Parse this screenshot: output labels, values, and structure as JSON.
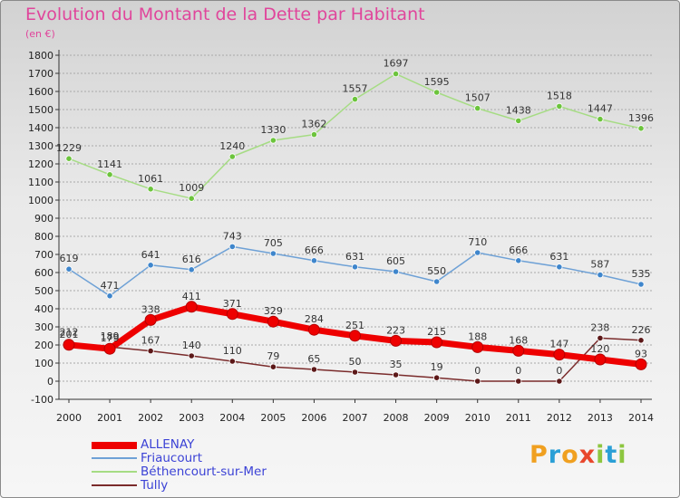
{
  "header": {
    "title": "Evolution du Montant de la Dette par Habitant",
    "subtitle": "(en €)"
  },
  "colors": {
    "title": "#e0459b",
    "legend_text": "#3c43d6"
  },
  "logo": {
    "letters": [
      "P",
      "r",
      "o",
      "x",
      "i",
      "t",
      "i"
    ],
    "colors": [
      "#f0a020",
      "#2a9fd6",
      "#f0a020",
      "#e8472c",
      "#8dc63f",
      "#2a9fd6",
      "#8dc63f"
    ]
  },
  "chart_data": {
    "type": "line",
    "title": "Evolution du Montant de la Dette par Habitant",
    "subtitle": "(en €)",
    "xlabel": "",
    "ylabel": "",
    "ylim": [
      -100,
      1800
    ],
    "y_ticks": [
      -100,
      0,
      100,
      200,
      300,
      400,
      500,
      600,
      700,
      800,
      900,
      1000,
      1100,
      1200,
      1300,
      1400,
      1500,
      1600,
      1700,
      1800
    ],
    "grid": true,
    "legend_position": "bottom-left",
    "categories": [
      "2000",
      "2001",
      "2002",
      "2003",
      "2004",
      "2005",
      "2006",
      "2007",
      "2008",
      "2009",
      "2010",
      "2011",
      "2012",
      "2013",
      "2014"
    ],
    "series": [
      {
        "name": "ALLENAY",
        "color": "#ee0000",
        "marker": "#ee0000",
        "values": [
          201,
          179,
          338,
          411,
          371,
          329,
          284,
          251,
          223,
          215,
          188,
          168,
          147,
          120,
          93
        ]
      },
      {
        "name": "Friaucourt",
        "color": "#6ea1d6",
        "marker": "#3f86cc",
        "values": [
          619,
          471,
          641,
          616,
          743,
          705,
          666,
          631,
          605,
          550,
          710,
          666,
          631,
          587,
          535
        ]
      },
      {
        "name": "Béthencourt-sur-Mer",
        "color": "#a6dc84",
        "marker": "#6cc43c",
        "values": [
          1229,
          1141,
          1061,
          1009,
          1240,
          1330,
          1362,
          1557,
          1697,
          1595,
          1507,
          1438,
          1518,
          1447,
          1396
        ]
      },
      {
        "name": "Tully",
        "color": "#7a2b2b",
        "marker": "#5c1818",
        "values": [
          212,
          189,
          167,
          140,
          110,
          79,
          65,
          50,
          35,
          19,
          0,
          0,
          0,
          238,
          226
        ]
      }
    ]
  }
}
